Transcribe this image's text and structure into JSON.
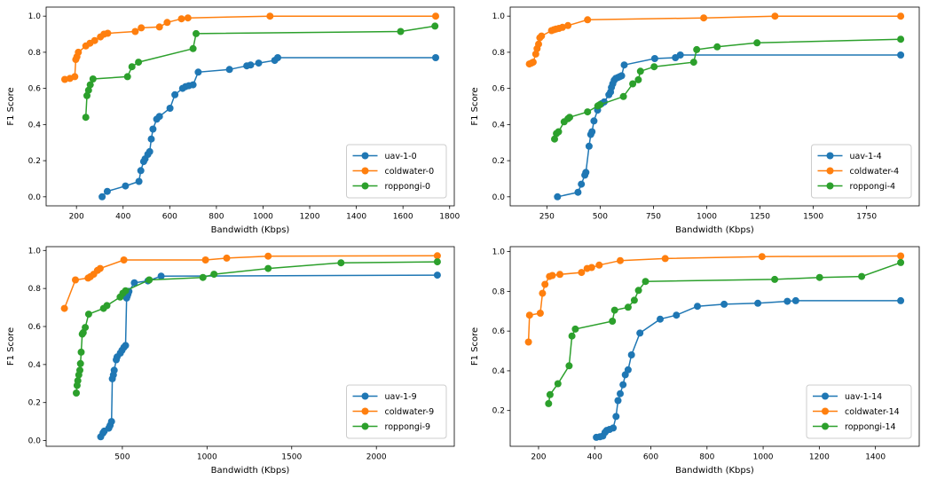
{
  "figure": {
    "background": "#ffffff",
    "text_color": "#000000",
    "spine_color": "#000000",
    "legend_border_color": "#cccccc"
  },
  "chart_data": [
    {
      "type": "line",
      "title": "",
      "xlabel": "Bandwidth (Kbps)",
      "ylabel": "F1 Score",
      "grid": false,
      "legend_position": "lower right",
      "xlim": [
        70,
        1820
      ],
      "ylim": [
        -0.05,
        1.05
      ],
      "xticks": [
        200,
        400,
        600,
        800,
        1000,
        1200,
        1400,
        1600,
        1800
      ],
      "yticks": [
        0.0,
        0.2,
        0.4,
        0.6,
        0.8,
        1.0
      ],
      "series": [
        {
          "name": "uav-1-0",
          "color": "#1f77b4",
          "points": [
            [
              310,
              0.0
            ],
            [
              332,
              0.03
            ],
            [
              410,
              0.06
            ],
            [
              468,
              0.085
            ],
            [
              476,
              0.145
            ],
            [
              488,
              0.195
            ],
            [
              494,
              0.21
            ],
            [
              506,
              0.235
            ],
            [
              514,
              0.25
            ],
            [
              521,
              0.32
            ],
            [
              528,
              0.375
            ],
            [
              544,
              0.43
            ],
            [
              556,
              0.445
            ],
            [
              601,
              0.49
            ],
            [
              622,
              0.565
            ],
            [
              655,
              0.6
            ],
            [
              668,
              0.61
            ],
            [
              682,
              0.615
            ],
            [
              700,
              0.62
            ],
            [
              722,
              0.69
            ],
            [
              856,
              0.705
            ],
            [
              930,
              0.725
            ],
            [
              947,
              0.73
            ],
            [
              981,
              0.74
            ],
            [
              1050,
              0.755
            ],
            [
              1063,
              0.77
            ],
            [
              1740,
              0.77
            ]
          ]
        },
        {
          "name": "coldwater-0",
          "color": "#ff7f0e",
          "points": [
            [
              150,
              0.65
            ],
            [
              172,
              0.655
            ],
            [
              193,
              0.665
            ],
            [
              197,
              0.76
            ],
            [
              202,
              0.775
            ],
            [
              208,
              0.8
            ],
            [
              240,
              0.835
            ],
            [
              258,
              0.85
            ],
            [
              278,
              0.865
            ],
            [
              303,
              0.885
            ],
            [
              318,
              0.9
            ],
            [
              334,
              0.905
            ],
            [
              452,
              0.915
            ],
            [
              478,
              0.935
            ],
            [
              556,
              0.94
            ],
            [
              589,
              0.965
            ],
            [
              650,
              0.985
            ],
            [
              678,
              0.99
            ],
            [
              1030,
              1.0
            ],
            [
              1740,
              1.0
            ]
          ]
        },
        {
          "name": "roppongi-0",
          "color": "#2ca02c",
          "points": [
            [
              240,
              0.44
            ],
            [
              245,
              0.56
            ],
            [
              252,
              0.59
            ],
            [
              259,
              0.62
            ],
            [
              271,
              0.652
            ],
            [
              419,
              0.665
            ],
            [
              438,
              0.72
            ],
            [
              466,
              0.745
            ],
            [
              700,
              0.82
            ],
            [
              713,
              0.903
            ],
            [
              1590,
              0.915
            ],
            [
              1737,
              0.945
            ]
          ]
        }
      ]
    },
    {
      "type": "line",
      "title": "",
      "xlabel": "Bandwidth (Kbps)",
      "ylabel": "F1 Score",
      "grid": false,
      "legend_position": "lower right",
      "xlim": [
        78,
        1997
      ],
      "ylim": [
        -0.05,
        1.05
      ],
      "xticks": [
        250,
        500,
        750,
        1000,
        1250,
        1500,
        1750
      ],
      "yticks": [
        0.0,
        0.2,
        0.4,
        0.6,
        0.8,
        1.0
      ],
      "series": [
        {
          "name": "uav-1-4",
          "color": "#1f77b4",
          "points": [
            [
              300,
              0.0
            ],
            [
              396,
              0.025
            ],
            [
              412,
              0.07
            ],
            [
              428,
              0.12
            ],
            [
              433,
              0.135
            ],
            [
              448,
              0.28
            ],
            [
              456,
              0.345
            ],
            [
              462,
              0.36
            ],
            [
              471,
              0.42
            ],
            [
              488,
              0.48
            ],
            [
              506,
              0.515
            ],
            [
              519,
              0.525
            ],
            [
              541,
              0.565
            ],
            [
              549,
              0.58
            ],
            [
              553,
              0.605
            ],
            [
              559,
              0.625
            ],
            [
              566,
              0.645
            ],
            [
              573,
              0.655
            ],
            [
              583,
              0.66
            ],
            [
              592,
              0.665
            ],
            [
              601,
              0.67
            ],
            [
              613,
              0.73
            ],
            [
              756,
              0.765
            ],
            [
              853,
              0.77
            ],
            [
              876,
              0.785
            ],
            [
              1910,
              0.785
            ]
          ]
        },
        {
          "name": "coldwater-4",
          "color": "#ff7f0e",
          "points": [
            [
              168,
              0.735
            ],
            [
              178,
              0.74
            ],
            [
              186,
              0.745
            ],
            [
              198,
              0.79
            ],
            [
              204,
              0.82
            ],
            [
              211,
              0.845
            ],
            [
              217,
              0.88
            ],
            [
              225,
              0.89
            ],
            [
              272,
              0.92
            ],
            [
              283,
              0.925
            ],
            [
              293,
              0.928
            ],
            [
              307,
              0.932
            ],
            [
              323,
              0.938
            ],
            [
              349,
              0.948
            ],
            [
              441,
              0.98
            ],
            [
              986,
              0.99
            ],
            [
              1320,
              1.0
            ],
            [
              1910,
              1.0
            ]
          ]
        },
        {
          "name": "roppongi-4",
          "color": "#2ca02c",
          "points": [
            [
              286,
              0.32
            ],
            [
              295,
              0.35
            ],
            [
              305,
              0.36
            ],
            [
              331,
              0.415
            ],
            [
              349,
              0.432
            ],
            [
              357,
              0.44
            ],
            [
              441,
              0.47
            ],
            [
              489,
              0.503
            ],
            [
              499,
              0.51
            ],
            [
              609,
              0.555
            ],
            [
              653,
              0.625
            ],
            [
              679,
              0.648
            ],
            [
              689,
              0.695
            ],
            [
              753,
              0.72
            ],
            [
              939,
              0.745
            ],
            [
              953,
              0.815
            ],
            [
              1049,
              0.83
            ],
            [
              1236,
              0.852
            ],
            [
              1910,
              0.872
            ]
          ]
        }
      ]
    },
    {
      "type": "line",
      "title": "",
      "xlabel": "Bandwidth (Kbps)",
      "ylabel": "F1 Score",
      "grid": false,
      "legend_position": "lower right",
      "xlim": [
        50,
        2460
      ],
      "ylim": [
        -0.03,
        1.02
      ],
      "xticks": [
        500,
        1000,
        1500,
        2000
      ],
      "yticks": [
        0.0,
        0.2,
        0.4,
        0.6,
        0.8,
        1.0
      ],
      "series": [
        {
          "name": "uav-1-9",
          "color": "#1f77b4",
          "points": [
            [
              372,
              0.02
            ],
            [
              386,
              0.04
            ],
            [
              393,
              0.05
            ],
            [
              420,
              0.065
            ],
            [
              428,
              0.08
            ],
            [
              436,
              0.1
            ],
            [
              441,
              0.325
            ],
            [
              447,
              0.345
            ],
            [
              452,
              0.37
            ],
            [
              464,
              0.425
            ],
            [
              469,
              0.44
            ],
            [
              488,
              0.46
            ],
            [
              498,
              0.475
            ],
            [
              509,
              0.49
            ],
            [
              519,
              0.5
            ],
            [
              525,
              0.75
            ],
            [
              529,
              0.76
            ],
            [
              533,
              0.77
            ],
            [
              539,
              0.785
            ],
            [
              571,
              0.83
            ],
            [
              651,
              0.84
            ],
            [
              729,
              0.865
            ],
            [
              2360,
              0.87
            ]
          ]
        },
        {
          "name": "coldwater-9",
          "color": "#ff7f0e",
          "points": [
            [
              158,
              0.695
            ],
            [
              223,
              0.845
            ],
            [
              298,
              0.855
            ],
            [
              311,
              0.862
            ],
            [
              331,
              0.875
            ],
            [
              353,
              0.895
            ],
            [
              369,
              0.905
            ],
            [
              509,
              0.95
            ],
            [
              991,
              0.95
            ],
            [
              1116,
              0.96
            ],
            [
              1361,
              0.97
            ],
            [
              2360,
              0.972
            ]
          ]
        },
        {
          "name": "roppongi-9",
          "color": "#2ca02c",
          "points": [
            [
              228,
              0.25
            ],
            [
              233,
              0.29
            ],
            [
              237,
              0.315
            ],
            [
              243,
              0.345
            ],
            [
              249,
              0.37
            ],
            [
              253,
              0.405
            ],
            [
              257,
              0.465
            ],
            [
              263,
              0.56
            ],
            [
              269,
              0.568
            ],
            [
              281,
              0.595
            ],
            [
              301,
              0.665
            ],
            [
              389,
              0.695
            ],
            [
              409,
              0.71
            ],
            [
              487,
              0.755
            ],
            [
              503,
              0.775
            ],
            [
              519,
              0.788
            ],
            [
              659,
              0.845
            ],
            [
              976,
              0.858
            ],
            [
              1041,
              0.875
            ],
            [
              1361,
              0.905
            ],
            [
              1791,
              0.935
            ],
            [
              2360,
              0.94
            ]
          ]
        }
      ]
    },
    {
      "type": "line",
      "title": "",
      "xlabel": "Bandwidth (Kbps)",
      "ylabel": "F1 Score",
      "grid": false,
      "legend_position": "lower right",
      "xlim": [
        99,
        1556
      ],
      "ylim": [
        0.02,
        1.025
      ],
      "xticks": [
        200,
        400,
        600,
        800,
        1000,
        1200,
        1400
      ],
      "yticks": [
        0.2,
        0.4,
        0.6,
        0.8,
        1.0
      ],
      "series": [
        {
          "name": "uav-1-14",
          "color": "#1f77b4",
          "points": [
            [
              406,
              0.065
            ],
            [
              419,
              0.068
            ],
            [
              429,
              0.072
            ],
            [
              437,
              0.09
            ],
            [
              443,
              0.1
            ],
            [
              453,
              0.105
            ],
            [
              466,
              0.112
            ],
            [
              476,
              0.17
            ],
            [
              483,
              0.25
            ],
            [
              491,
              0.285
            ],
            [
              501,
              0.33
            ],
            [
              509,
              0.38
            ],
            [
              519,
              0.405
            ],
            [
              531,
              0.48
            ],
            [
              561,
              0.59
            ],
            [
              633,
              0.66
            ],
            [
              691,
              0.68
            ],
            [
              766,
              0.725
            ],
            [
              861,
              0.735
            ],
            [
              981,
              0.74
            ],
            [
              1086,
              0.75
            ],
            [
              1116,
              0.753
            ],
            [
              1490,
              0.753
            ]
          ]
        },
        {
          "name": "coldwater-14",
          "color": "#ff7f0e",
          "points": [
            [
              164,
              0.545
            ],
            [
              168,
              0.68
            ],
            [
              206,
              0.69
            ],
            [
              214,
              0.79
            ],
            [
              223,
              0.835
            ],
            [
              239,
              0.875
            ],
            [
              249,
              0.88
            ],
            [
              276,
              0.885
            ],
            [
              353,
              0.895
            ],
            [
              373,
              0.915
            ],
            [
              389,
              0.92
            ],
            [
              416,
              0.932
            ],
            [
              491,
              0.955
            ],
            [
              651,
              0.965
            ],
            [
              996,
              0.975
            ],
            [
              1490,
              0.978
            ]
          ]
        },
        {
          "name": "roppongi-14",
          "color": "#2ca02c",
          "points": [
            [
              236,
              0.235
            ],
            [
              241,
              0.28
            ],
            [
              269,
              0.335
            ],
            [
              309,
              0.425
            ],
            [
              319,
              0.575
            ],
            [
              331,
              0.61
            ],
            [
              463,
              0.65
            ],
            [
              471,
              0.705
            ],
            [
              519,
              0.72
            ],
            [
              541,
              0.755
            ],
            [
              556,
              0.805
            ],
            [
              581,
              0.85
            ],
            [
              1041,
              0.86
            ],
            [
              1201,
              0.87
            ],
            [
              1351,
              0.875
            ],
            [
              1490,
              0.945
            ]
          ]
        }
      ]
    }
  ]
}
